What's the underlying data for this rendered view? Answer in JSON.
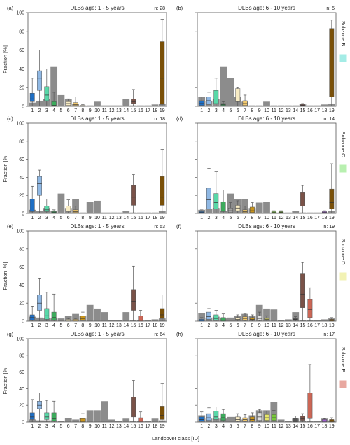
{
  "figure": {
    "ylabel": "Fraction [%]",
    "xlabel": "Landcover class [ID]",
    "yticks": [
      0,
      20,
      40,
      60,
      80,
      100
    ],
    "xticks": [
      "1",
      "2",
      "3",
      "4",
      "5",
      "6",
      "7",
      "8",
      "9",
      "10",
      "11",
      "12",
      "13",
      "14",
      "15",
      "16",
      "17",
      "18",
      "19"
    ]
  },
  "colors": {
    "gray_bar": "#8c8c8c",
    "classes": [
      "#1f6fc4",
      "#8fb8e4",
      "#58d8a8",
      "#3cab5c",
      "#a0a0a0",
      "#f8ecc4",
      "#f2c96e",
      "#c8941c",
      "#e0e0e0",
      "#e6e66a",
      "#78c83a",
      "#588c22",
      "#777777",
      "#555555",
      "#7a5248",
      "#cc6655",
      "#a0a0a0",
      "#a060d0",
      "#7a5008"
    ],
    "zones": [
      "#a4ece6",
      "#b8f0b0",
      "#f2f2b4",
      "#e8a8a0"
    ]
  },
  "chart_data": [
    {
      "id": "a",
      "type": "box+bar",
      "title": "DLBs age: 1 - 5 years",
      "n_label": "n: 28",
      "zone": "",
      "ylim": [
        0,
        100
      ],
      "bars": [
        4,
        6,
        8,
        42,
        12,
        8,
        3,
        1,
        1,
        5,
        1,
        1,
        1,
        8,
        1,
        1,
        1,
        2,
        3
      ],
      "boxes": [
        {
          "c": 1,
          "lo": 0,
          "q1": 5,
          "med": 8,
          "q3": 14,
          "hi": 30
        },
        {
          "c": 2,
          "lo": 0,
          "q1": 17,
          "med": 30,
          "q3": 38,
          "hi": 60
        },
        {
          "c": 3,
          "lo": 0,
          "q1": 6,
          "med": 12,
          "q3": 21,
          "hi": 40
        },
        {
          "c": 4,
          "lo": 0,
          "q1": 0,
          "med": 1,
          "q3": 5,
          "hi": 15
        },
        {
          "c": 6,
          "lo": 0,
          "q1": 1,
          "med": 3,
          "q3": 5,
          "hi": 8
        },
        {
          "c": 7,
          "lo": 0,
          "q1": 1,
          "med": 2,
          "q3": 4,
          "hi": 10
        },
        {
          "c": 8,
          "lo": 0,
          "q1": 0,
          "med": 0,
          "q3": 1,
          "hi": 2
        },
        {
          "c": 15,
          "lo": 0,
          "q1": 3,
          "med": 5,
          "q3": 8,
          "hi": 18
        },
        {
          "c": 19,
          "lo": 0,
          "q1": 2,
          "med": 30,
          "q3": 69,
          "hi": 93
        }
      ]
    },
    {
      "id": "b",
      "type": "box+bar",
      "title": "DLBs age: 6 - 10 years",
      "n_label": "n: 5",
      "zone": "Subzone B",
      "ylim": [
        0,
        100
      ],
      "bars": [
        10,
        6,
        8,
        42,
        30,
        10,
        5,
        1,
        1,
        5,
        1,
        1,
        1,
        1,
        2,
        1,
        1,
        2,
        3
      ],
      "boxes": [
        {
          "c": 1,
          "lo": 0,
          "q1": 1,
          "med": 3,
          "q3": 6,
          "hi": 10
        },
        {
          "c": 2,
          "lo": 0,
          "q1": 2,
          "med": 6,
          "q3": 10,
          "hi": 15
        },
        {
          "c": 3,
          "lo": 0,
          "q1": 3,
          "med": 10,
          "q3": 17,
          "hi": 30
        },
        {
          "c": 4,
          "lo": 0,
          "q1": 1,
          "med": 2,
          "q3": 3,
          "hi": 5
        },
        {
          "c": 6,
          "lo": 0,
          "q1": 5,
          "med": 10,
          "q3": 19,
          "hi": 20
        },
        {
          "c": 7,
          "lo": 0,
          "q1": 1,
          "med": 3,
          "q3": 6,
          "hi": 12
        },
        {
          "c": 15,
          "lo": 0,
          "q1": 0,
          "med": 1,
          "q3": 2,
          "hi": 3
        },
        {
          "c": 19,
          "lo": 0,
          "q1": 10,
          "med": 40,
          "q3": 83,
          "hi": 92
        }
      ]
    },
    {
      "id": "c",
      "type": "box+bar",
      "title": "DLBs age: 1 - 5 years",
      "n_label": "n: 18",
      "zone": "",
      "ylim": [
        0,
        100
      ],
      "bars": [
        4,
        3,
        6,
        3,
        22,
        6,
        16,
        1,
        13,
        14,
        1,
        1,
        1,
        3,
        1,
        1,
        1,
        1,
        3
      ],
      "boxes": [
        {
          "c": 1,
          "lo": 0,
          "q1": 2,
          "med": 5,
          "q3": 16,
          "hi": 30
        },
        {
          "c": 2,
          "lo": 0,
          "q1": 20,
          "med": 33,
          "q3": 41,
          "hi": 48
        },
        {
          "c": 3,
          "lo": 0,
          "q1": 2,
          "med": 4,
          "q3": 8,
          "hi": 16
        },
        {
          "c": 4,
          "lo": 0,
          "q1": 0,
          "med": 1,
          "q3": 2,
          "hi": 4
        },
        {
          "c": 6,
          "lo": 0,
          "q1": 2,
          "med": 5,
          "q3": 8,
          "hi": 15
        },
        {
          "c": 7,
          "lo": 0,
          "q1": 1,
          "med": 2,
          "q3": 4,
          "hi": 8
        },
        {
          "c": 15,
          "lo": 0,
          "q1": 9,
          "med": 18,
          "q3": 31,
          "hi": 43
        },
        {
          "c": 19,
          "lo": 0,
          "q1": 9,
          "med": 18,
          "q3": 41,
          "hi": 71
        }
      ]
    },
    {
      "id": "d",
      "type": "box+bar",
      "title": "DLBs age: 6 - 10 years",
      "n_label": "n: 14",
      "zone": "Subzone C",
      "ylim": [
        0,
        100
      ],
      "bars": [
        4,
        5,
        6,
        3,
        22,
        16,
        16,
        6,
        12,
        13,
        1,
        1,
        1,
        3,
        1,
        1,
        1,
        1,
        3
      ],
      "boxes": [
        {
          "c": 1,
          "lo": 0,
          "q1": 0,
          "med": 1,
          "q3": 2,
          "hi": 4
        },
        {
          "c": 2,
          "lo": 0,
          "q1": 5,
          "med": 15,
          "q3": 28,
          "hi": 50
        },
        {
          "c": 3,
          "lo": 0,
          "q1": 5,
          "med": 12,
          "q3": 22,
          "hi": 46
        },
        {
          "c": 4,
          "lo": 0,
          "q1": 2,
          "med": 5,
          "q3": 13,
          "hi": 26
        },
        {
          "c": 5,
          "lo": 0,
          "q1": 1,
          "med": 3,
          "q3": 6,
          "hi": 12
        },
        {
          "c": 6,
          "lo": 0,
          "q1": 3,
          "med": 6,
          "q3": 9,
          "hi": 14
        },
        {
          "c": 7,
          "lo": 0,
          "q1": 1,
          "med": 2,
          "q3": 4,
          "hi": 8
        },
        {
          "c": 8,
          "lo": 0,
          "q1": 1,
          "med": 3,
          "q3": 7,
          "hi": 12
        },
        {
          "c": 11,
          "lo": 0,
          "q1": 0,
          "med": 1,
          "q3": 2,
          "hi": 3
        },
        {
          "c": 12,
          "lo": 0,
          "q1": 0,
          "med": 1,
          "q3": 2,
          "hi": 3
        },
        {
          "c": 15,
          "lo": 0,
          "q1": 8,
          "med": 16,
          "q3": 23,
          "hi": 31
        },
        {
          "c": 18,
          "lo": 0,
          "q1": 0,
          "med": 1,
          "q3": 2,
          "hi": 3
        },
        {
          "c": 19,
          "lo": 0,
          "q1": 5,
          "med": 12,
          "q3": 27,
          "hi": 55
        }
      ]
    },
    {
      "id": "e",
      "type": "box+bar",
      "title": "DLBs age: 1 - 5 years",
      "n_label": "n: 53",
      "zone": "",
      "ylim": [
        0,
        100
      ],
      "bars": [
        5,
        4,
        3,
        3,
        3,
        6,
        8,
        6,
        18,
        14,
        10,
        1,
        1,
        10,
        1,
        1,
        1,
        2,
        3
      ],
      "boxes": [
        {
          "c": 1,
          "lo": 0,
          "q1": 1,
          "med": 4,
          "q3": 7,
          "hi": 16
        },
        {
          "c": 2,
          "lo": 0,
          "q1": 12,
          "med": 20,
          "q3": 29,
          "hi": 47
        },
        {
          "c": 3,
          "lo": 0,
          "q1": 2,
          "med": 6,
          "q3": 14,
          "hi": 32
        },
        {
          "c": 4,
          "lo": 0,
          "q1": 1,
          "med": 4,
          "q3": 10,
          "hi": 30
        },
        {
          "c": 6,
          "lo": 0,
          "q1": 0,
          "med": 1,
          "q3": 2,
          "hi": 3
        },
        {
          "c": 7,
          "lo": 0,
          "q1": 0,
          "med": 1,
          "q3": 2,
          "hi": 3
        },
        {
          "c": 8,
          "lo": 0,
          "q1": 1,
          "med": 3,
          "q3": 6,
          "hi": 10
        },
        {
          "c": 15,
          "lo": 0,
          "q1": 12,
          "med": 22,
          "q3": 35,
          "hi": 61
        },
        {
          "c": 16,
          "lo": 0,
          "q1": 0,
          "med": 1,
          "q3": 6,
          "hi": 12
        },
        {
          "c": 19,
          "lo": 0,
          "q1": 3,
          "med": 7,
          "q3": 14,
          "hi": 29
        }
      ]
    },
    {
      "id": "f",
      "type": "box+bar",
      "title": "DLBs age: 6 - 10 years",
      "n_label": "n: 19",
      "zone": "Subzone D",
      "ylim": [
        0,
        100
      ],
      "bars": [
        9,
        4,
        5,
        3,
        4,
        6,
        8,
        6,
        18,
        14,
        13,
        1,
        2,
        10,
        1,
        1,
        1,
        2,
        3
      ],
      "boxes": [
        {
          "c": 1,
          "lo": 0,
          "q1": 0,
          "med": 1,
          "q3": 2,
          "hi": 4
        },
        {
          "c": 2,
          "lo": 0,
          "q1": 2,
          "med": 5,
          "q3": 10,
          "hi": 14
        },
        {
          "c": 3,
          "lo": 0,
          "q1": 1,
          "med": 3,
          "q3": 7,
          "hi": 12
        },
        {
          "c": 4,
          "lo": 0,
          "q1": 0,
          "med": 1,
          "q3": 4,
          "hi": 8
        },
        {
          "c": 6,
          "lo": 0,
          "q1": 1,
          "med": 2,
          "q3": 4,
          "hi": 7
        },
        {
          "c": 7,
          "lo": 0,
          "q1": 1,
          "med": 3,
          "q3": 5,
          "hi": 8
        },
        {
          "c": 8,
          "lo": 0,
          "q1": 1,
          "med": 2,
          "q3": 4,
          "hi": 7
        },
        {
          "c": 9,
          "lo": 0,
          "q1": 1,
          "med": 3,
          "q3": 6,
          "hi": 10
        },
        {
          "c": 10,
          "lo": 0,
          "q1": 1,
          "med": 2,
          "q3": 3,
          "hi": 6
        },
        {
          "c": 14,
          "lo": 0,
          "q1": 1,
          "med": 2,
          "q3": 3,
          "hi": 5
        },
        {
          "c": 15,
          "lo": 0,
          "q1": 15,
          "med": 30,
          "q3": 53,
          "hi": 65
        },
        {
          "c": 16,
          "lo": 0,
          "q1": 4,
          "med": 13,
          "q3": 24,
          "hi": 37
        },
        {
          "c": 19,
          "lo": 0,
          "q1": 0,
          "med": 1,
          "q3": 2,
          "hi": 4
        }
      ]
    },
    {
      "id": "g",
      "type": "box+bar",
      "title": "DLBs age: 1 - 5 years",
      "n_label": "n: 64",
      "zone": "",
      "ylim": [
        0,
        100
      ],
      "bars": [
        3,
        2,
        2,
        2,
        1,
        5,
        3,
        4,
        14,
        14,
        25,
        3,
        1,
        4,
        1,
        1,
        1,
        4,
        2
      ],
      "boxes": [
        {
          "c": 1,
          "lo": 0,
          "q1": 3,
          "med": 6,
          "q3": 11,
          "hi": 27
        },
        {
          "c": 2,
          "lo": 0,
          "q1": 16,
          "med": 20,
          "q3": 25,
          "hi": 35
        },
        {
          "c": 3,
          "lo": 0,
          "q1": 3,
          "med": 6,
          "q3": 11,
          "hi": 26
        },
        {
          "c": 4,
          "lo": 0,
          "q1": 1,
          "med": 4,
          "q3": 11,
          "hi": 25
        },
        {
          "c": 8,
          "lo": 0,
          "q1": 0,
          "med": 1,
          "q3": 4,
          "hi": 10
        },
        {
          "c": 15,
          "lo": 0,
          "q1": 6,
          "med": 18,
          "q3": 30,
          "hi": 50
        },
        {
          "c": 16,
          "lo": 0,
          "q1": 0,
          "med": 1,
          "q3": 5,
          "hi": 12
        },
        {
          "c": 19,
          "lo": 0,
          "q1": 3,
          "med": 8,
          "q3": 19,
          "hi": 46
        }
      ]
    },
    {
      "id": "h",
      "type": "box+bar",
      "title": "DLBs age: 6 - 10 years",
      "n_label": "n: 17",
      "zone": "Subzone E",
      "ylim": [
        0,
        100
      ],
      "bars": [
        8,
        4,
        4,
        4,
        6,
        6,
        3,
        8,
        14,
        14,
        24,
        3,
        1,
        4,
        1,
        1,
        1,
        4,
        2
      ],
      "boxes": [
        {
          "c": 1,
          "lo": 0,
          "q1": 1,
          "med": 3,
          "q3": 6,
          "hi": 12
        },
        {
          "c": 2,
          "lo": 0,
          "q1": 2,
          "med": 5,
          "q3": 10,
          "hi": 17
        },
        {
          "c": 3,
          "lo": 0,
          "q1": 3,
          "med": 6,
          "q3": 13,
          "hi": 18
        },
        {
          "c": 4,
          "lo": 0,
          "q1": 2,
          "med": 5,
          "q3": 10,
          "hi": 15
        },
        {
          "c": 6,
          "lo": 0,
          "q1": 1,
          "med": 3,
          "q3": 6,
          "hi": 10
        },
        {
          "c": 7,
          "lo": 0,
          "q1": 1,
          "med": 3,
          "q3": 5,
          "hi": 9
        },
        {
          "c": 8,
          "lo": 0,
          "q1": 1,
          "med": 3,
          "q3": 6,
          "hi": 11
        },
        {
          "c": 9,
          "lo": 0,
          "q1": 2,
          "med": 6,
          "q3": 11,
          "hi": 15
        },
        {
          "c": 10,
          "lo": 0,
          "q1": 2,
          "med": 5,
          "q3": 9,
          "hi": 13
        },
        {
          "c": 11,
          "lo": 0,
          "q1": 2,
          "med": 5,
          "q3": 9,
          "hi": 14
        },
        {
          "c": 14,
          "lo": 0,
          "q1": 0,
          "med": 1,
          "q3": 4,
          "hi": 7
        },
        {
          "c": 15,
          "lo": 0,
          "q1": 2,
          "med": 4,
          "q3": 7,
          "hi": 10
        },
        {
          "c": 16,
          "lo": 0,
          "q1": 4,
          "med": 13,
          "q3": 35,
          "hi": 69
        },
        {
          "c": 18,
          "lo": 0,
          "q1": 0,
          "med": 1,
          "q3": 3,
          "hi": 4
        },
        {
          "c": 19,
          "lo": 0,
          "q1": 0,
          "med": 1,
          "q3": 3,
          "hi": 5
        }
      ]
    }
  ]
}
